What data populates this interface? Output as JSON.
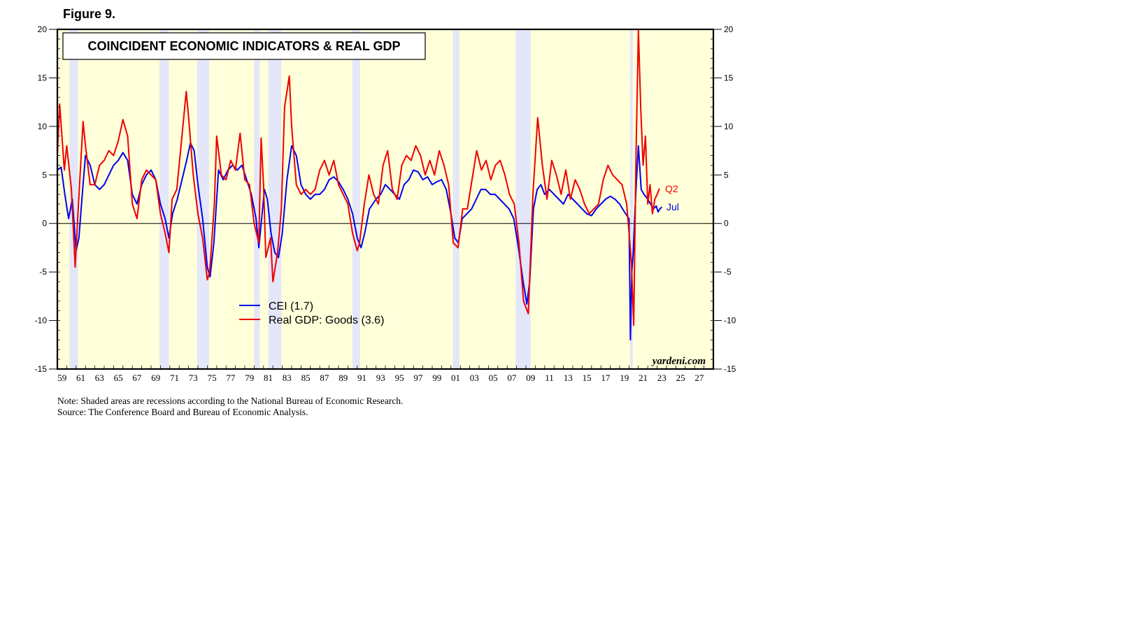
{
  "figure_label": "Figure 9.",
  "notes": {
    "line1": "Note: Shaded areas are recessions according to the National Bureau of Economic Research.",
    "line2": "Source: The Conference Board and Bureau of Economic Analysis."
  },
  "colors": {
    "plot_bg": "#ffffd9",
    "recession": "#e4e6fa",
    "cei": "#0000ee",
    "gdp": "#ee0000"
  },
  "chart_data": {
    "type": "line",
    "title": "COINCIDENT ECONOMIC INDICATORS & REAL GDP",
    "xlabel": "",
    "ylabel": "",
    "xlim": [
      1959,
      2029
    ],
    "ylim": [
      -15,
      20
    ],
    "yticks": [
      -15,
      -10,
      -5,
      0,
      5,
      10,
      15,
      20
    ],
    "ytick_labels": [
      "-15",
      "-10",
      "-5",
      "0",
      "5",
      "10",
      "15",
      "20"
    ],
    "xticks": [
      1959,
      1961,
      1963,
      1965,
      1967,
      1969,
      1971,
      1973,
      1975,
      1977,
      1979,
      1981,
      1983,
      1985,
      1987,
      1989,
      1991,
      1993,
      1995,
      1997,
      1999,
      2001,
      2003,
      2005,
      2007,
      2009,
      2011,
      2013,
      2015,
      2017,
      2019,
      2021,
      2023,
      2025,
      2027
    ],
    "xtick_labels": [
      "59",
      "61",
      "63",
      "65",
      "67",
      "69",
      "71",
      "73",
      "75",
      "77",
      "79",
      "81",
      "83",
      "85",
      "87",
      "89",
      "91",
      "93",
      "95",
      "97",
      "99",
      "01",
      "03",
      "05",
      "07",
      "09",
      "11",
      "13",
      "15",
      "17",
      "19",
      "21",
      "23",
      "25",
      "27"
    ],
    "recessions": [
      [
        1960.3,
        1961.2
      ],
      [
        1969.9,
        1970.9
      ],
      [
        1973.9,
        1975.2
      ],
      [
        1980.0,
        1980.6
      ],
      [
        1981.5,
        1982.9
      ],
      [
        1990.5,
        1991.3
      ],
      [
        2001.2,
        2001.9
      ],
      [
        2007.9,
        2009.5
      ],
      [
        2020.1,
        2020.4
      ]
    ],
    "watermark": "yardeni.com",
    "legend_position": "lower-center",
    "series": [
      {
        "name": "CEI (1.7)",
        "color": "#0000ee",
        "end_label": "Jul",
        "x": [
          1959.0,
          1959.4,
          1959.8,
          1960.2,
          1960.6,
          1961.0,
          1961.3,
          1961.7,
          1962.0,
          1962.5,
          1963.0,
          1963.5,
          1964.0,
          1964.5,
          1965.0,
          1965.5,
          1966.0,
          1966.5,
          1967.0,
          1967.5,
          1968.0,
          1968.5,
          1969.0,
          1969.5,
          1970.0,
          1970.5,
          1970.9,
          1971.3,
          1971.8,
          1972.3,
          1972.8,
          1973.2,
          1973.6,
          1974.0,
          1974.5,
          1975.0,
          1975.3,
          1975.7,
          1976.2,
          1976.7,
          1977.2,
          1977.7,
          1978.2,
          1978.7,
          1979.2,
          1979.7,
          1980.2,
          1980.5,
          1980.8,
          1981.1,
          1981.4,
          1981.8,
          1982.2,
          1982.6,
          1983.0,
          1983.5,
          1984.0,
          1984.5,
          1985.0,
          1985.5,
          1986.0,
          1986.5,
          1987.0,
          1987.5,
          1988.0,
          1988.5,
          1989.0,
          1989.5,
          1990.0,
          1990.5,
          1991.0,
          1991.4,
          1991.8,
          1992.3,
          1993.0,
          1993.5,
          1994.0,
          1994.5,
          1995.0,
          1995.5,
          1996.0,
          1996.5,
          1997.0,
          1997.5,
          1998.0,
          1998.5,
          1999.0,
          1999.5,
          2000.0,
          2000.5,
          2001.0,
          2001.4,
          2001.8,
          2002.2,
          2002.7,
          2003.2,
          2003.7,
          2004.2,
          2004.7,
          2005.2,
          2005.7,
          2006.2,
          2006.7,
          2007.2,
          2007.7,
          2008.2,
          2008.7,
          2009.1,
          2009.4,
          2009.8,
          2010.2,
          2010.6,
          2011.0,
          2011.5,
          2012.0,
          2012.5,
          2013.0,
          2013.5,
          2014.0,
          2014.5,
          2015.0,
          2015.5,
          2016.0,
          2016.5,
          2017.0,
          2017.5,
          2018.0,
          2018.5,
          2019.0,
          2019.5,
          2020.0,
          2020.15,
          2020.3,
          2020.45,
          2020.6,
          2020.8,
          2021.0,
          2021.3,
          2021.6,
          2022.0,
          2022.3,
          2022.6,
          2022.9,
          2023.1,
          2023.3,
          2023.5
        ],
        "y": [
          5.5,
          5.8,
          3.0,
          0.5,
          2.5,
          -2.8,
          -1.5,
          3.5,
          7.0,
          6.0,
          4.0,
          3.5,
          4.0,
          5.0,
          6.0,
          6.5,
          7.3,
          6.5,
          3.0,
          2.0,
          4.0,
          5.0,
          5.5,
          4.5,
          2.0,
          0.5,
          -1.5,
          1.0,
          2.5,
          4.5,
          6.5,
          8.3,
          7.5,
          4.0,
          0.5,
          -4.5,
          -5.5,
          -2.0,
          5.5,
          4.5,
          5.5,
          6.0,
          5.5,
          6.0,
          4.5,
          3.0,
          0.5,
          -2.5,
          0.5,
          3.5,
          2.5,
          -1.0,
          -3.0,
          -3.5,
          -1.0,
          4.5,
          8.0,
          7.0,
          4.0,
          3.0,
          2.5,
          3.0,
          3.0,
          3.5,
          4.5,
          4.8,
          4.3,
          3.5,
          2.5,
          1.0,
          -1.5,
          -2.5,
          -1.0,
          1.5,
          2.5,
          3.0,
          4.0,
          3.5,
          3.0,
          2.5,
          4.0,
          4.5,
          5.5,
          5.3,
          4.5,
          4.8,
          4.0,
          4.3,
          4.5,
          3.5,
          1.0,
          -1.5,
          -2.0,
          0.5,
          1.0,
          1.5,
          2.5,
          3.5,
          3.5,
          3.0,
          3.0,
          2.5,
          2.0,
          1.5,
          0.5,
          -2.5,
          -6.0,
          -8.3,
          -6.0,
          1.5,
          3.5,
          4.0,
          3.0,
          3.5,
          3.0,
          2.5,
          2.0,
          3.0,
          2.5,
          2.0,
          1.5,
          1.0,
          0.8,
          1.5,
          2.0,
          2.5,
          2.8,
          2.5,
          2.0,
          1.2,
          0.5,
          -12.0,
          -5.0,
          -3.0,
          0.5,
          4.5,
          8.0,
          3.5,
          3.0,
          2.5,
          2.0,
          1.5,
          1.8,
          1.2,
          1.5,
          1.7
        ]
      },
      {
        "name": "Real GDP: Goods (3.6)",
        "color": "#ee0000",
        "end_label": "Q2",
        "x": [
          1959.0,
          1959.25,
          1959.75,
          1960.0,
          1960.5,
          1960.9,
          1961.25,
          1961.75,
          1962.0,
          1962.5,
          1963.0,
          1963.5,
          1964.0,
          1964.5,
          1965.0,
          1965.5,
          1966.0,
          1966.5,
          1967.0,
          1967.5,
          1968.0,
          1968.5,
          1969.0,
          1969.5,
          1970.0,
          1970.5,
          1970.9,
          1971.25,
          1971.75,
          1972.25,
          1972.75,
          1973.0,
          1973.5,
          1974.0,
          1974.5,
          1975.0,
          1975.25,
          1975.75,
          1976.0,
          1976.5,
          1977.0,
          1977.5,
          1978.0,
          1978.5,
          1979.0,
          1979.5,
          1980.0,
          1980.5,
          1980.75,
          1981.0,
          1981.25,
          1981.75,
          1982.0,
          1982.5,
          1982.9,
          1983.25,
          1983.75,
          1984.0,
          1984.5,
          1985.0,
          1985.5,
          1986.0,
          1986.5,
          1987.0,
          1987.5,
          1988.0,
          1988.5,
          1989.0,
          1989.5,
          1990.0,
          1990.5,
          1991.0,
          1991.25,
          1991.75,
          1992.25,
          1992.75,
          1993.25,
          1993.75,
          1994.25,
          1994.75,
          1995.25,
          1995.75,
          1996.25,
          1996.75,
          1997.25,
          1997.75,
          1998.25,
          1998.75,
          1999.25,
          1999.75,
          2000.25,
          2000.75,
          2001.25,
          2001.75,
          2002.25,
          2002.75,
          2003.25,
          2003.75,
          2004.25,
          2004.75,
          2005.25,
          2005.75,
          2006.25,
          2006.75,
          2007.25,
          2007.75,
          2008.25,
          2008.75,
          2009.25,
          2009.75,
          2010.25,
          2010.75,
          2011.25,
          2011.75,
          2012.25,
          2012.75,
          2013.25,
          2013.75,
          2014.25,
          2014.75,
          2015.25,
          2015.75,
          2016.25,
          2016.75,
          2017.25,
          2017.75,
          2018.25,
          2018.75,
          2019.25,
          2019.75,
          2020.25,
          2020.5,
          2020.75,
          2021.0,
          2021.25,
          2021.5,
          2021.75,
          2022.0,
          2022.25,
          2022.5,
          2022.75,
          2023.0,
          2023.25
        ],
        "y": [
          7.0,
          12.3,
          5.5,
          8.0,
          3.5,
          -4.5,
          2.0,
          10.5,
          8.0,
          4.0,
          4.0,
          6.0,
          6.5,
          7.5,
          7.0,
          8.5,
          10.7,
          9.0,
          2.0,
          0.5,
          4.5,
          5.5,
          5.0,
          4.5,
          1.0,
          -1.0,
          -3.0,
          2.5,
          3.5,
          8.5,
          13.6,
          11.0,
          5.0,
          1.0,
          -1.5,
          -5.8,
          -5.0,
          2.0,
          9.0,
          5.0,
          4.5,
          6.5,
          5.5,
          9.3,
          4.5,
          4.0,
          0.0,
          -2.0,
          8.8,
          4.0,
          -3.5,
          -1.5,
          -6.0,
          -3.0,
          1.5,
          12.0,
          15.2,
          10.0,
          4.0,
          3.0,
          3.5,
          3.0,
          3.5,
          5.5,
          6.5,
          5.0,
          6.5,
          4.0,
          3.0,
          2.0,
          -1.0,
          -2.8,
          -2.0,
          2.0,
          5.0,
          3.0,
          2.0,
          6.0,
          7.5,
          3.5,
          2.5,
          6.0,
          7.0,
          6.5,
          8.0,
          7.0,
          5.0,
          6.5,
          5.0,
          7.5,
          6.0,
          4.0,
          -2.0,
          -2.5,
          1.5,
          1.5,
          4.5,
          7.5,
          5.5,
          6.5,
          4.5,
          6.0,
          6.5,
          5.0,
          3.0,
          2.0,
          -2.0,
          -8.0,
          -9.3,
          3.0,
          10.9,
          6.0,
          2.5,
          6.5,
          5.0,
          3.0,
          5.5,
          2.5,
          4.5,
          3.5,
          2.0,
          1.0,
          1.5,
          2.0,
          4.5,
          6.0,
          5.0,
          4.5,
          4.0,
          2.0,
          -4.0,
          -10.5,
          7.0,
          20.0,
          12.0,
          6.0,
          9.0,
          2.0,
          4.0,
          1.0,
          2.5,
          3.0,
          3.6
        ]
      }
    ]
  }
}
